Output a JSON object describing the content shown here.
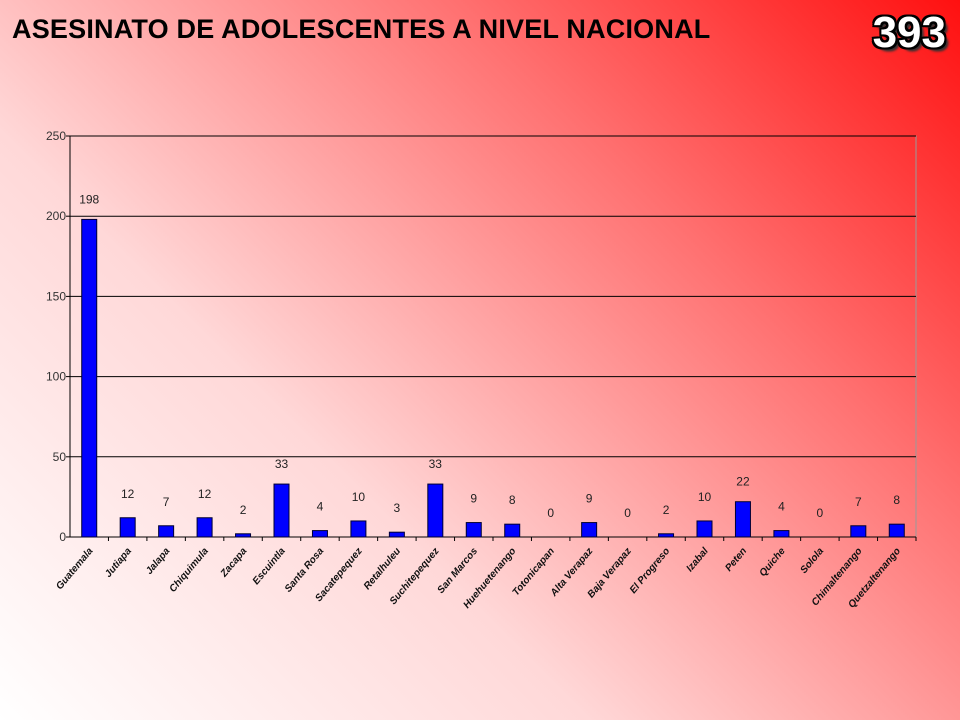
{
  "title": "ASESINATO DE ADOLESCENTES A NIVEL NACIONAL",
  "total": "393",
  "chart_data": {
    "type": "bar",
    "title": "",
    "xlabel": "",
    "ylabel": "",
    "ylim": [
      0,
      250
    ],
    "yticks": [
      0,
      50,
      100,
      150,
      200,
      250
    ],
    "grid": true,
    "colors": {
      "bar": "#0000ff",
      "bar_stroke": "#000033"
    },
    "categories": [
      "Guatemala",
      "Jutiapa",
      "Jalapa",
      "Chiquimula",
      "Zacapa",
      "Escuintla",
      "Santa Rosa",
      "Sacatepequez",
      "Retalhuleu",
      "Suchitepequez",
      "San Marcos",
      "Huehuetenango",
      "Totonicapan",
      "Alta Verapaz",
      "Baja Verapaz",
      "El Progreso",
      "Izabal",
      "Peten",
      "Quiche",
      "Solola",
      "Chimaltenango",
      "Quetzaltenango"
    ],
    "values": [
      198,
      12,
      7,
      12,
      2,
      33,
      4,
      10,
      3,
      33,
      9,
      8,
      0,
      9,
      0,
      2,
      10,
      22,
      4,
      0,
      7,
      8
    ]
  }
}
